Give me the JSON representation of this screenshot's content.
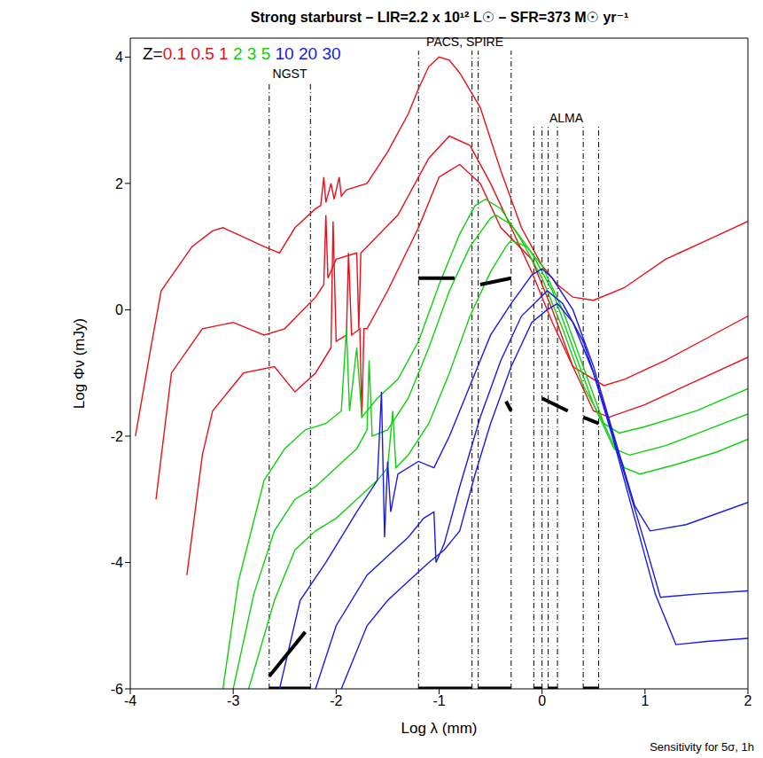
{
  "chart_data": {
    "type": "line",
    "title": "Strong starburst – LIR=2.2 x 10¹² L☉ – SFR=373 M☉ yr⁻¹",
    "x_label": "Log λ (mm)",
    "y_label": "Log Φν (mJy)",
    "legend_label": "Z=",
    "legend": "top-left",
    "note": "Sensitivity for 5σ, 1h",
    "xlim": [
      -4,
      2
    ],
    "ylim": [
      -6,
      4.3
    ],
    "xticks": [
      -4,
      -3,
      -2,
      -1,
      0,
      1,
      2
    ],
    "yticks": [
      -6,
      -4,
      -2,
      0,
      2,
      4
    ],
    "series": [
      {
        "name": "0.1",
        "color": "#e8101a",
        "x": [
          -3.95,
          -3.8,
          -3.7,
          -3.4,
          -3.2,
          -3.1,
          -2.9,
          -2.7,
          -2.55,
          -2.4,
          -2.2,
          -2.15,
          -2.12,
          -2.1,
          -2.05,
          -2.02,
          -1.97,
          -1.95,
          -1.9,
          -1.7,
          -1.5,
          -1.3,
          -1.2,
          -1.1,
          -1.0,
          -0.9,
          -0.8,
          -0.6,
          -0.4,
          -0.2,
          0.0,
          0.15,
          0.3,
          0.5,
          0.8,
          1.2,
          1.6,
          2.0
        ],
        "values": [
          -2.0,
          -0.6,
          0.3,
          1.0,
          1.25,
          1.3,
          1.15,
          1.0,
          0.9,
          1.3,
          1.6,
          1.65,
          2.1,
          1.7,
          2.0,
          1.75,
          2.1,
          1.8,
          1.9,
          2.0,
          2.5,
          3.1,
          3.5,
          3.85,
          4.0,
          3.95,
          3.75,
          3.2,
          2.2,
          1.3,
          0.7,
          0.4,
          0.2,
          0.15,
          0.35,
          0.8,
          1.1,
          1.4
        ]
      },
      {
        "name": "0.5",
        "color": "#e8101a",
        "x": [
          -3.75,
          -3.6,
          -3.3,
          -3.0,
          -2.7,
          -2.5,
          -2.2,
          -2.12,
          -2.1,
          -2.08,
          -2.0,
          -1.8,
          -1.78,
          -1.76,
          -1.7,
          -1.4,
          -1.1,
          -0.9,
          -0.7,
          -0.5,
          -0.3,
          -0.1,
          0.1,
          0.3,
          0.6,
          0.8,
          1.2,
          1.6,
          2.0
        ],
        "values": [
          -3.0,
          -1.0,
          -0.3,
          -0.2,
          -0.4,
          -0.3,
          0.2,
          0.4,
          1.5,
          0.5,
          0.8,
          0.9,
          -0.3,
          0.9,
          1.0,
          1.5,
          2.4,
          2.75,
          2.6,
          2.0,
          1.3,
          0.6,
          -0.2,
          -0.9,
          -1.2,
          -1.1,
          -0.8,
          -0.45,
          -0.1
        ]
      },
      {
        "name": "1",
        "color": "#e8101a",
        "x": [
          -3.45,
          -3.3,
          -3.2,
          -2.9,
          -2.6,
          -2.4,
          -2.2,
          -2.05,
          -2.03,
          -2.0,
          -1.9,
          -1.88,
          -1.85,
          -1.77,
          -1.75,
          -1.73,
          -1.7,
          -1.5,
          -1.2,
          -1.0,
          -0.8,
          -0.6,
          -0.4,
          -0.1,
          0.1,
          0.3,
          0.5,
          0.65,
          1.0,
          1.4,
          2.0
        ],
        "values": [
          -4.2,
          -2.3,
          -1.6,
          -1.0,
          -0.9,
          -1.3,
          -1.0,
          -0.6,
          1.4,
          -0.5,
          -0.4,
          0.9,
          -0.4,
          -0.3,
          -1.7,
          -0.3,
          -0.3,
          0.3,
          1.3,
          2.1,
          2.3,
          2.0,
          1.3,
          0.8,
          0.0,
          -0.9,
          -1.6,
          -1.7,
          -1.5,
          -1.2,
          -0.75
        ]
      },
      {
        "name": "2",
        "color": "#10d010",
        "x": [
          -3.1,
          -2.95,
          -2.7,
          -2.5,
          -2.3,
          -2.1,
          -1.95,
          -1.9,
          -1.87,
          -1.8,
          -1.75,
          -1.6,
          -1.4,
          -1.2,
          -1.0,
          -0.8,
          -0.65,
          -0.55,
          -0.4,
          -0.2,
          0.0,
          0.2,
          0.4,
          0.6,
          0.75,
          1.0,
          1.5,
          2.0
        ],
        "values": [
          -6.0,
          -4.3,
          -2.7,
          -2.2,
          -1.9,
          -1.8,
          -1.6,
          -0.3,
          -1.6,
          -0.6,
          -1.7,
          -1.4,
          -1.1,
          -0.5,
          0.4,
          1.2,
          1.65,
          1.75,
          1.6,
          1.1,
          0.5,
          -0.3,
          -1.2,
          -1.8,
          -1.95,
          -1.85,
          -1.6,
          -1.25
        ]
      },
      {
        "name": "3",
        "color": "#10d010",
        "x": [
          -3.0,
          -2.8,
          -2.6,
          -2.4,
          -2.2,
          -2.0,
          -1.8,
          -1.7,
          -1.68,
          -1.65,
          -1.5,
          -1.3,
          -1.1,
          -0.9,
          -0.7,
          -0.5,
          -0.45,
          -0.3,
          -0.1,
          0.1,
          0.3,
          0.5,
          0.7,
          0.85,
          1.2,
          1.6,
          2.0
        ],
        "values": [
          -6.0,
          -4.5,
          -3.5,
          -3.0,
          -2.8,
          -2.5,
          -2.2,
          -1.9,
          -0.8,
          -2.0,
          -1.9,
          -1.4,
          -0.6,
          0.3,
          1.0,
          1.45,
          1.5,
          1.35,
          0.9,
          0.3,
          -0.6,
          -1.5,
          -2.2,
          -2.3,
          -2.15,
          -1.9,
          -1.65
        ]
      },
      {
        "name": "5",
        "color": "#10d010",
        "x": [
          -2.85,
          -2.6,
          -2.4,
          -2.2,
          -2.0,
          -1.8,
          -1.6,
          -1.5,
          -1.45,
          -1.42,
          -1.3,
          -1.1,
          -0.9,
          -0.7,
          -0.5,
          -0.35,
          -0.3,
          -0.15,
          0.0,
          0.2,
          0.4,
          0.6,
          0.8,
          0.95,
          1.3,
          1.7,
          2.0
        ],
        "values": [
          -6.0,
          -4.6,
          -3.8,
          -3.5,
          -3.3,
          -3.0,
          -2.7,
          -2.5,
          -1.6,
          -2.5,
          -2.3,
          -1.8,
          -1.0,
          -0.1,
          0.6,
          1.0,
          1.1,
          1.0,
          0.7,
          0.0,
          -0.9,
          -1.8,
          -2.5,
          -2.6,
          -2.45,
          -2.25,
          -2.05
        ]
      },
      {
        "name": "10",
        "color": "#1a1ae6",
        "x": [
          -2.55,
          -2.35,
          -2.1,
          -1.8,
          -1.6,
          -1.56,
          -1.53,
          -1.5,
          -1.47,
          -1.4,
          -1.2,
          -1.05,
          -0.9,
          -0.7,
          -0.5,
          -0.3,
          -0.1,
          0.0,
          0.1,
          0.3,
          0.5,
          0.7,
          0.9,
          1.05,
          1.4,
          2.0
        ],
        "values": [
          -6.0,
          -4.6,
          -4.0,
          -3.2,
          -2.7,
          -1.3,
          -3.6,
          -2.4,
          -3.2,
          -2.6,
          -2.4,
          -2.5,
          -2.0,
          -1.2,
          -0.4,
          0.1,
          0.55,
          0.65,
          0.5,
          0.0,
          -0.9,
          -2.0,
          -3.1,
          -3.5,
          -3.4,
          -3.05
        ]
      },
      {
        "name": "20",
        "color": "#1a1ae6",
        "x": [
          -2.2,
          -2.0,
          -1.7,
          -1.5,
          -1.3,
          -1.15,
          -1.05,
          -1.03,
          -0.95,
          -0.8,
          -0.6,
          -0.4,
          -0.2,
          0.05,
          0.2,
          0.4,
          0.6,
          0.8,
          1.0,
          1.15,
          1.5,
          2.0
        ],
        "values": [
          -6.0,
          -5.0,
          -4.2,
          -3.9,
          -3.6,
          -3.3,
          -3.2,
          -4.0,
          -3.7,
          -2.8,
          -1.7,
          -0.8,
          -0.1,
          0.3,
          0.1,
          -0.5,
          -1.5,
          -2.6,
          -3.7,
          -4.55,
          -4.5,
          -4.45
        ]
      },
      {
        "name": "30",
        "color": "#1a1ae6",
        "x": [
          -1.95,
          -1.7,
          -1.5,
          -1.3,
          -1.1,
          -0.95,
          -0.8,
          -0.65,
          -0.5,
          -0.3,
          -0.1,
          0.05,
          0.15,
          0.3,
          0.5,
          0.7,
          0.9,
          1.1,
          1.3,
          1.6,
          2.0
        ],
        "values": [
          -6.0,
          -5.0,
          -4.6,
          -4.3,
          -4.0,
          -3.8,
          -3.5,
          -2.6,
          -1.8,
          -0.9,
          -0.2,
          0.0,
          0.1,
          -0.2,
          -1.0,
          -2.1,
          -3.3,
          -4.5,
          -5.3,
          -5.25,
          -5.2
        ]
      }
    ],
    "bands": [
      {
        "label": "NGST",
        "ranges": [
          [
            -2.65,
            -2.25
          ]
        ],
        "top": 3.6
      },
      {
        "label": "PACS, SPIRE",
        "ranges": [
          [
            -1.2,
            -0.68
          ],
          [
            -0.62,
            -0.3
          ]
        ],
        "top": 4.1
      },
      {
        "label": "ALMA",
        "ranges": [
          [
            -0.08,
            0.0
          ],
          [
            0.06,
            0.15
          ],
          [
            0.4,
            0.55
          ]
        ],
        "top": 2.9
      }
    ],
    "sensitivity": [
      {
        "x": [
          -2.65,
          -2.3
        ],
        "y": [
          -5.8,
          -5.1
        ]
      },
      {
        "x": [
          -1.2,
          -0.85
        ],
        "y": [
          0.5,
          0.5
        ]
      },
      {
        "x": [
          -0.6,
          -0.3
        ],
        "y": [
          0.4,
          0.5
        ]
      },
      {
        "x": [
          -0.35,
          -0.3
        ],
        "y": [
          -1.45,
          -1.6
        ]
      },
      {
        "x": [
          0.0,
          0.25
        ],
        "y": [
          -1.4,
          -1.6
        ]
      },
      {
        "x": [
          0.4,
          0.55
        ],
        "y": [
          -1.7,
          -1.8
        ]
      }
    ]
  }
}
